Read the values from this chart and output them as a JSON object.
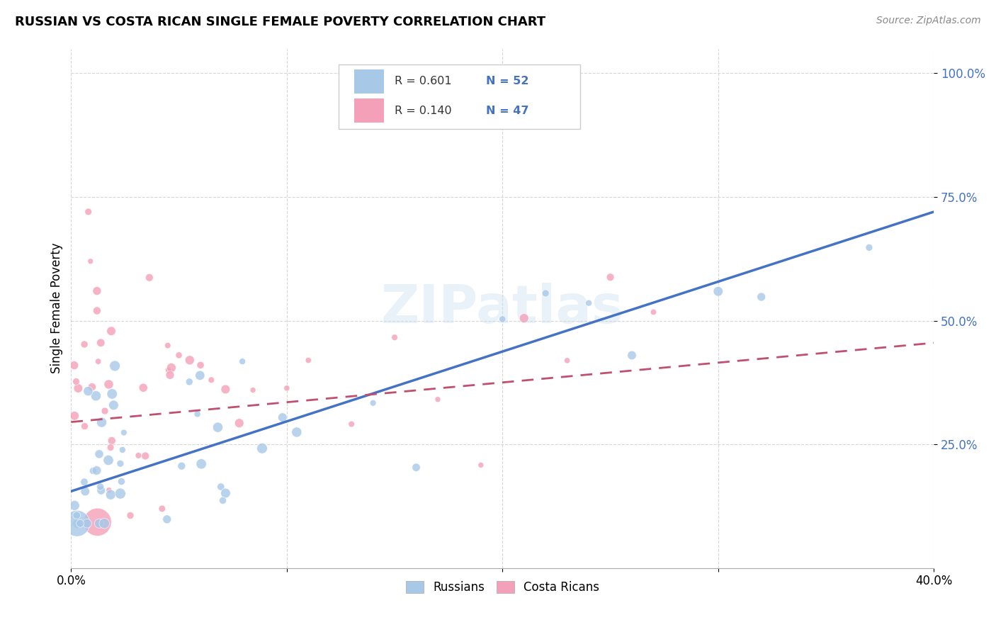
{
  "title": "RUSSIAN VS COSTA RICAN SINGLE FEMALE POVERTY CORRELATION CHART",
  "source": "Source: ZipAtlas.com",
  "ylabel": "Single Female Poverty",
  "yticks": [
    "25.0%",
    "50.0%",
    "75.0%",
    "100.0%"
  ],
  "ytick_vals": [
    0.25,
    0.5,
    0.75,
    1.0
  ],
  "xlim": [
    0.0,
    0.4
  ],
  "ylim": [
    0.05,
    1.05
  ],
  "russian_color": "#a8c8e8",
  "russian_line_color": "#4472c4",
  "costa_rican_color": "#f4a0b8",
  "costa_rican_line_color": "#c05070",
  "watermark": "ZIPatlas",
  "rus_trend_x0": 0.0,
  "rus_trend_x1": 0.4,
  "rus_trend_y0": 0.155,
  "rus_trend_y1": 0.72,
  "cos_trend_x0": 0.0,
  "cos_trend_x1": 0.4,
  "cos_trend_y0": 0.295,
  "cos_trend_y1": 0.455
}
